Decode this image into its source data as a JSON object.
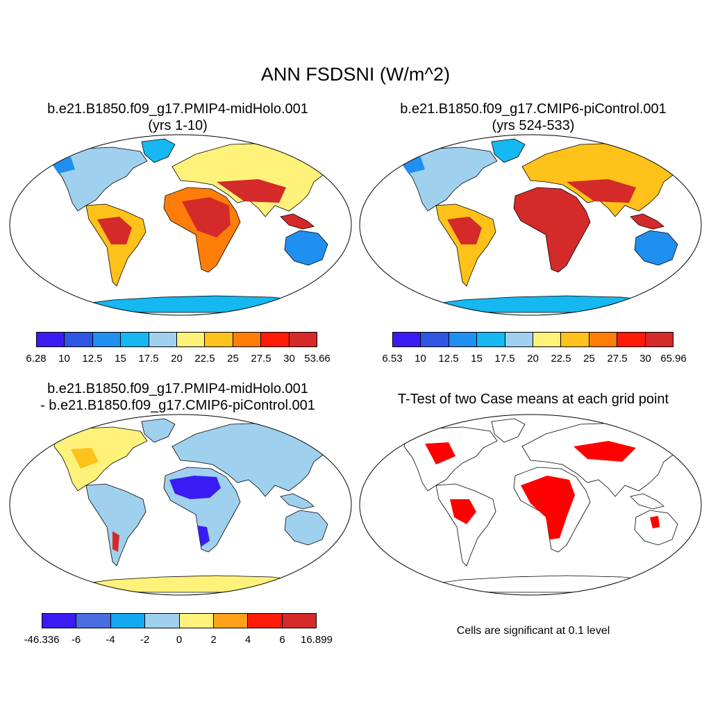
{
  "title": "ANN FSDSNI (W/m^2)",
  "panels": [
    {
      "id": "midholo",
      "title_lines": [
        "b.e21.B1850.f09_g17.PMIP4-midHolo.001",
        "(yrs 1-10)"
      ],
      "colorbar": {
        "colors": [
          "#3a1cf2",
          "#2f56e2",
          "#1f8ff0",
          "#15b8f0",
          "#9fd1ee",
          "#fff27a",
          "#ffc21a",
          "#ff7e0a",
          "#ff1a0a",
          "#d42a2a"
        ],
        "labels": [
          "6.28",
          "10",
          "12.5",
          "15",
          "17.5",
          "20",
          "22.5",
          "25",
          "27.5",
          "30",
          "53.66"
        ]
      }
    },
    {
      "id": "picontrol",
      "title_lines": [
        "b.e21.B1850.f09_g17.CMIP6-piControl.001",
        "(yrs 524-533)"
      ],
      "colorbar": {
        "colors": [
          "#3a1cf2",
          "#2f56e2",
          "#1f8ff0",
          "#15b8f0",
          "#9fd1ee",
          "#fff27a",
          "#ffc21a",
          "#ff7e0a",
          "#ff1a0a",
          "#d42a2a"
        ],
        "labels": [
          "6.53",
          "10",
          "12.5",
          "15",
          "17.5",
          "20",
          "22.5",
          "25",
          "27.5",
          "30",
          "65.96"
        ]
      }
    },
    {
      "id": "difference",
      "title_lines": [
        "b.e21.B1850.f09_g17.PMIP4-midHolo.001",
        "- b.e21.B1850.f09_g17.CMIP6-piControl.001"
      ],
      "colorbar": {
        "colors": [
          "#3a1cf2",
          "#4a6ee0",
          "#15a8f0",
          "#9fd1ee",
          "#fff27a",
          "#ffa21a",
          "#ff1a0a",
          "#d42a2a"
        ],
        "labels": [
          "-46.336",
          "-6",
          "-4",
          "-2",
          "0",
          "2",
          "4",
          "6",
          "16.899"
        ]
      }
    },
    {
      "id": "ttest",
      "title_lines": [
        "T-Test of two Case means at each grid point"
      ],
      "note": "Cells are significant at 0.1 level",
      "significance_color": "#ff0000"
    }
  ]
}
